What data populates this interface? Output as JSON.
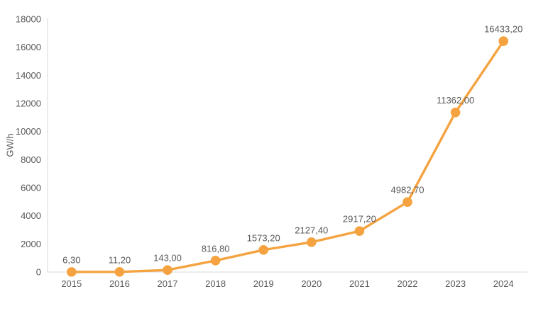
{
  "chart_data": {
    "type": "line",
    "title": "",
    "xlabel": "",
    "ylabel": "GW/h",
    "categories": [
      "2015",
      "2016",
      "2017",
      "2018",
      "2019",
      "2020",
      "2021",
      "2022",
      "2023",
      "2024"
    ],
    "series": [
      {
        "name": "",
        "values": [
          6.3,
          11.2,
          143.0,
          816.8,
          1573.2,
          2127.4,
          2917.2,
          4982.7,
          11362.0,
          16433.2
        ],
        "point_labels": [
          "6,30",
          "11,20",
          "143,00",
          "816,80",
          "1573,20",
          "2127,40",
          "2917,20",
          "4982,70",
          "11362,00",
          "16433,20"
        ]
      }
    ],
    "ylim": [
      0,
      18000
    ],
    "ytick_step": 2000,
    "yticks": [
      "0",
      "2000",
      "4000",
      "6000",
      "8000",
      "10000",
      "12000",
      "14000",
      "16000",
      "18000"
    ],
    "grid": false,
    "legend": false,
    "colors": {
      "line": "#F5A341",
      "marker": "#F5A341",
      "axis": "#D9D9D9",
      "text": "#595959"
    }
  }
}
